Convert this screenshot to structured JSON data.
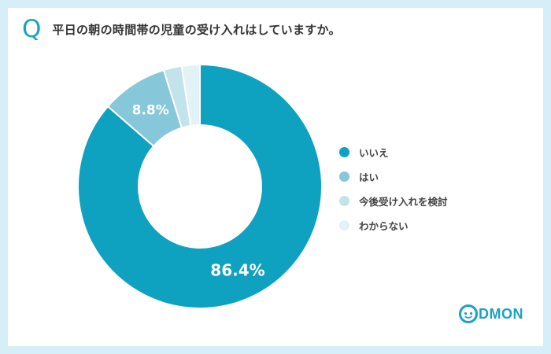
{
  "question": {
    "mark": "Q",
    "text": "平日の朝の時間帯の児童の受け入れはしていますか。"
  },
  "chart_data": {
    "type": "pie",
    "donut": true,
    "title": "平日の朝の時間帯の児童の受け入れはしていますか。",
    "categories": [
      "いいえ",
      "はい",
      "今後受け入れを検討",
      "わからない"
    ],
    "values": [
      86.4,
      8.8,
      2.4,
      2.4
    ],
    "data_labels": [
      "86.4%",
      "8.8%",
      "",
      ""
    ],
    "colors": [
      "#0fa1c0",
      "#86c7d9",
      "#c3e3ec",
      "#e2f2f6"
    ],
    "legend_position": "right"
  },
  "brand": {
    "name": "CODMON",
    "logo_text": "DMON",
    "color": "#1aa2c1"
  }
}
